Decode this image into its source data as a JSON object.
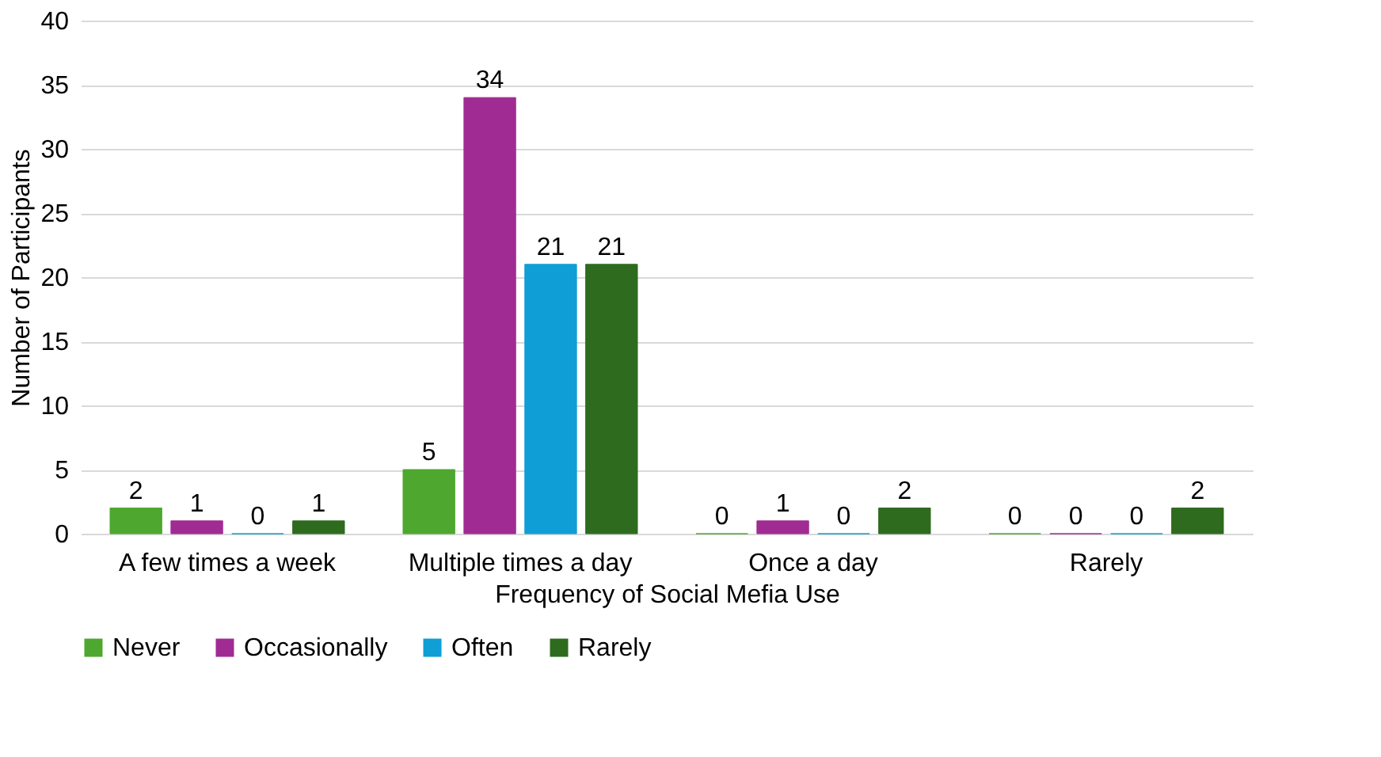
{
  "chart_data": {
    "type": "bar",
    "xlabel": "Frequency of Social Mefia Use",
    "ylabel": "Number of Participants",
    "categories": [
      "A few times a week",
      "Multiple times a day",
      "Once a day",
      "Rarely"
    ],
    "series": [
      {
        "name": "Never",
        "color": "#4ea72e",
        "values": [
          2,
          5,
          0,
          0
        ]
      },
      {
        "name": "Occasionally",
        "color": "#a02b93",
        "values": [
          1,
          34,
          1,
          0
        ]
      },
      {
        "name": "Often",
        "color": "#0f9ed5",
        "values": [
          0,
          21,
          0,
          0
        ]
      },
      {
        "name": "Rarely",
        "color": "#2e6b1f",
        "values": [
          1,
          21,
          2,
          2
        ]
      }
    ],
    "ylim": [
      0,
      40
    ],
    "yticks": [
      0,
      5,
      10,
      15,
      20,
      25,
      30,
      35,
      40
    ],
    "grid": "y",
    "legend": "bottom",
    "data_labels": true
  }
}
